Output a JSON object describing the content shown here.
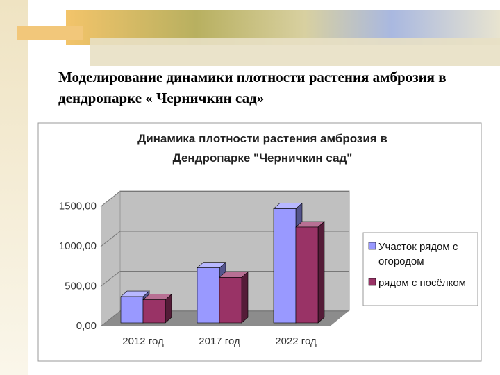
{
  "slide_title": "Моделирование динамики плотности растения амброзия в дендропарке « Черничкин сад»",
  "chart_data": {
    "type": "bar3d",
    "title": "Динамика плотности растения амброзия в Дендропарке \"Черничкин сад\"",
    "categories": [
      "2012 год",
      "2017 год",
      "2022 год"
    ],
    "series": [
      {
        "name": "Участок рядом с огородом",
        "color": "#9999ff",
        "values": [
          330,
          690,
          1430
        ]
      },
      {
        "name": "рядом с посёлком",
        "color": "#993366",
        "values": [
          290,
          570,
          1200
        ]
      }
    ],
    "ylim": [
      0,
      1500
    ],
    "yticks": [
      {
        "value": 0,
        "label": "0,00"
      },
      {
        "value": 500,
        "label": "500,00"
      },
      {
        "value": 1000,
        "label": "1000,00"
      },
      {
        "value": 1500,
        "label": "1500,00"
      }
    ],
    "grid": true,
    "legend": "right"
  }
}
